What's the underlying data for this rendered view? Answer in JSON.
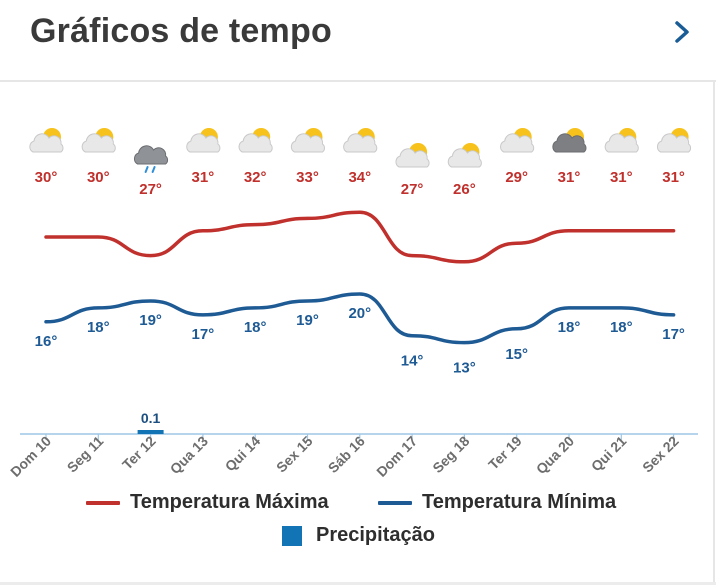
{
  "header": {
    "title": "Gráficos de tempo",
    "next_icon": "chevron-right-icon"
  },
  "colors": {
    "max": "#c0302c",
    "min": "#1e5a94",
    "precip": "#1273b5",
    "axis": "#9ec7e6",
    "tick_label": "#6d6d6d"
  },
  "chart_data": {
    "type": "line",
    "categories": [
      "Dom 10",
      "Seg 11",
      "Ter 12",
      "Qua 13",
      "Qui 14",
      "Sex 15",
      "Sáb 16",
      "Dom 17",
      "Seg 18",
      "Ter 19",
      "Qua 20",
      "Qui 21",
      "Sex 22"
    ],
    "weather_icons": [
      "partly-cloudy-icon",
      "partly-cloudy-icon",
      "rain-cloud-icon",
      "partly-cloudy-icon",
      "partly-cloudy-icon",
      "partly-cloudy-icon",
      "partly-cloudy-icon",
      "partly-cloudy-icon",
      "partly-cloudy-icon",
      "partly-cloudy-icon",
      "storm-cloud-sun-icon",
      "partly-cloudy-icon",
      "partly-cloudy-icon"
    ],
    "series": [
      {
        "name": "Temperatura Máxima",
        "values": [
          30,
          30,
          27,
          31,
          32,
          33,
          34,
          27,
          26,
          29,
          31,
          31,
          31
        ],
        "labels": [
          "30°",
          "30°",
          "27°",
          "31°",
          "32°",
          "33°",
          "34°",
          "27°",
          "26°",
          "29°",
          "31°",
          "31°",
          "31°"
        ]
      },
      {
        "name": "Temperatura Mínima",
        "values": [
          16,
          18,
          19,
          17,
          18,
          19,
          20,
          14,
          13,
          15,
          18,
          18,
          17
        ],
        "labels": [
          "16°",
          "18°",
          "19°",
          "17°",
          "18°",
          "19°",
          "20°",
          "14°",
          "13°",
          "15°",
          "18°",
          "18°",
          "17°"
        ]
      },
      {
        "name": "Precipitação",
        "values": [
          0,
          0,
          0.1,
          0,
          0,
          0,
          0,
          0,
          0,
          0,
          0,
          0,
          0
        ],
        "labels": [
          "",
          "",
          "0.1",
          "",
          "",
          "",
          "",
          "",
          "",
          "",
          "",
          "",
          ""
        ]
      }
    ],
    "legend_position": "bottom",
    "grid": false
  }
}
